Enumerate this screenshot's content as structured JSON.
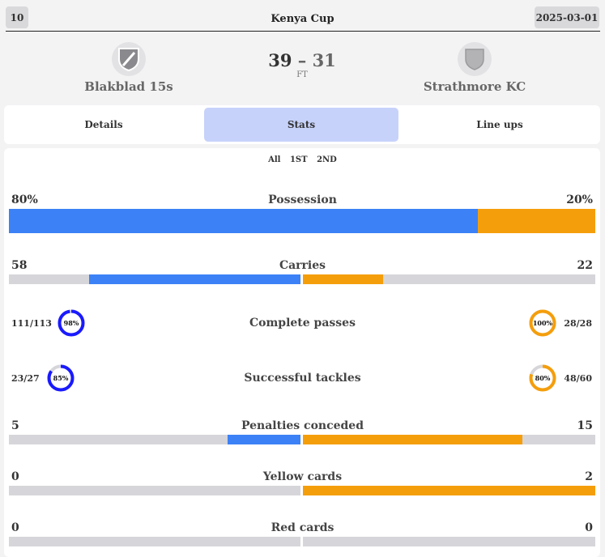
{
  "header": {
    "round": "10",
    "competition": "Kenya Cup",
    "date": "2025-03-01"
  },
  "match": {
    "home_team": "Blakblad 15s",
    "away_team": "Strathmore KC",
    "home_score": "39",
    "away_score": "31",
    "separator": "–",
    "status": "FT"
  },
  "tabs": [
    {
      "label": "Details",
      "active": false
    },
    {
      "label": "Stats",
      "active": true
    },
    {
      "label": "Line ups",
      "active": false
    }
  ],
  "periods": [
    "All",
    "1ST",
    "2ND"
  ],
  "colors": {
    "home": "#3c82f6",
    "away": "#f59e0b",
    "home_ring": "#1a1aff",
    "away_ring": "#f59e0b",
    "track": "#d6d6da"
  },
  "stats": {
    "possession": {
      "label": "Possession",
      "home": "80%",
      "away": "20%",
      "home_share": 0.8
    },
    "carries": {
      "label": "Carries",
      "home": "58",
      "away": "22",
      "home_value": 58,
      "away_value": 22
    },
    "complete_passes": {
      "label": "Complete passes",
      "home": "111/113",
      "away": "28/28",
      "home_pct": "98%",
      "away_pct": "100%",
      "home_frac": 0.98,
      "away_frac": 1.0
    },
    "successful_tackles": {
      "label": "Successful tackles",
      "home": "23/27",
      "away": "48/60",
      "home_pct": "85%",
      "away_pct": "80%",
      "home_frac": 0.85,
      "away_frac": 0.8
    },
    "penalties": {
      "label": "Penalties conceded",
      "home": "5",
      "away": "15",
      "home_value": 5,
      "away_value": 15
    },
    "yellow_cards": {
      "label": "Yellow cards",
      "home": "0",
      "away": "2",
      "home_value": 0,
      "away_value": 2
    },
    "red_cards": {
      "label": "Red cards",
      "home": "0",
      "away": "0",
      "home_value": 0,
      "away_value": 0
    }
  }
}
